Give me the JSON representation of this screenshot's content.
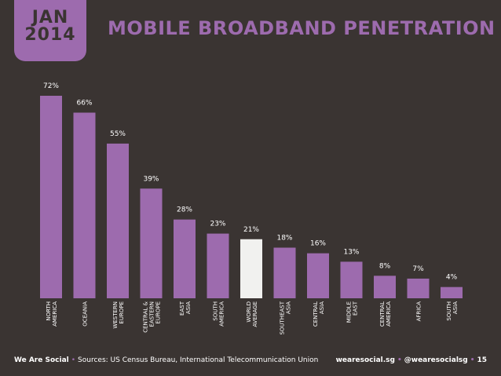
{
  "header": {
    "month": "JAN",
    "year": "2014",
    "title": "MOBILE BROADBAND PENETRATION"
  },
  "chart_data": {
    "type": "bar",
    "title": "MOBILE BROADBAND PENETRATION",
    "categories": [
      [
        "NORTH",
        "AMERICA"
      ],
      [
        "OCEANIA"
      ],
      [
        "WESTERN",
        "EUROPE"
      ],
      [
        "CENTRAL &",
        "EASTERN",
        "EUROPE"
      ],
      [
        "EAST",
        "ASIA"
      ],
      [
        "SOUTH",
        "AMERICA"
      ],
      [
        "WORLD",
        "AVERAGE"
      ],
      [
        "SOUTHEAST",
        "ASIA"
      ],
      [
        "CENTRAL",
        "ASIA"
      ],
      [
        "MIDDLE",
        "EAST"
      ],
      [
        "CENTRAL",
        "AMERICA"
      ],
      [
        "AFRICA"
      ],
      [
        "SOUTH",
        "ASIA"
      ]
    ],
    "values": [
      72,
      66,
      55,
      39,
      28,
      23,
      21,
      18,
      16,
      13,
      8,
      7,
      4
    ],
    "value_labels": [
      "72%",
      "66%",
      "55%",
      "39%",
      "28%",
      "23%",
      "21%",
      "18%",
      "16%",
      "13%",
      "8%",
      "7%",
      "4%"
    ],
    "highlight_index": 6,
    "ylim": [
      0,
      72
    ],
    "grid": false,
    "colors": {
      "bar": "#9d6bae",
      "highlight": "#f1f1ef",
      "background": "#3a3432",
      "text": "#ffffff"
    }
  },
  "footer": {
    "brand": "We Are Social",
    "sources": "Sources: US Census Bureau, International Telecommunication Union",
    "site": "wearesocial.sg",
    "handle": "@wearesocialsg",
    "page": "15"
  }
}
